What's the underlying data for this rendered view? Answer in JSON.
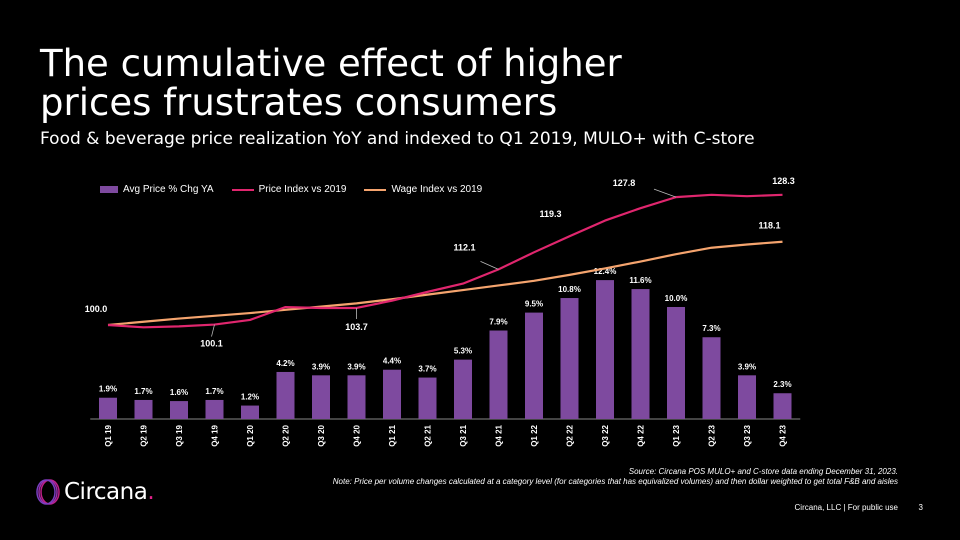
{
  "title": "The cumulative effect of higher prices frustrates consumers",
  "subtitle": "Food & beverage price realization YoY and indexed to Q1 2019, MULO+ with C-store",
  "legend": {
    "bar": "Avg Price % Chg YA",
    "price": "Price Index vs 2019",
    "wage": "Wage Index vs 2019"
  },
  "colors": {
    "bar": "#7e4a9f",
    "price": "#e0266e",
    "wage": "#f5a46e"
  },
  "chart_data": {
    "type": "bar",
    "categories": [
      "Q1 19",
      "Q2 19",
      "Q3 19",
      "Q4 19",
      "Q1 20",
      "Q2 20",
      "Q3 20",
      "Q4 20",
      "Q1 21",
      "Q2 21",
      "Q3 21",
      "Q4 21",
      "Q1 22",
      "Q2 22",
      "Q3 22",
      "Q4 22",
      "Q1 23",
      "Q2 23",
      "Q3 23",
      "Q4 23"
    ],
    "series": [
      {
        "name": "Avg Price % Chg YA",
        "kind": "bar",
        "values": [
          1.9,
          1.7,
          1.6,
          1.7,
          1.2,
          4.2,
          3.9,
          3.9,
          4.4,
          3.7,
          5.3,
          7.9,
          9.5,
          10.8,
          12.4,
          11.6,
          10.0,
          7.3,
          3.9,
          2.3
        ],
        "labels": [
          "1.9%",
          "1.7%",
          "1.6%",
          "1.7%",
          "1.2%",
          "4.2%",
          "3.9%",
          "3.9%",
          "4.4%",
          "3.7%",
          "5.3%",
          "7.9%",
          "9.5%",
          "10.8%",
          "12.4%",
          "11.6%",
          "10.0%",
          "7.3%",
          "3.9%",
          "2.3%"
        ]
      },
      {
        "name": "Price Index vs 2019",
        "kind": "line",
        "values": [
          100.0,
          99.5,
          99.7,
          100.1,
          101.1,
          103.9,
          103.7,
          103.7,
          105.3,
          107.2,
          109.0,
          112.1,
          115.8,
          119.3,
          122.7,
          125.4,
          127.8,
          128.3,
          128.0,
          128.3
        ]
      },
      {
        "name": "Wage Index vs 2019",
        "kind": "line",
        "values": [
          100.0,
          100.7,
          101.4,
          102.0,
          102.6,
          103.3,
          104.0,
          104.7,
          105.6,
          106.6,
          107.6,
          108.6,
          109.6,
          110.9,
          112.3,
          113.8,
          115.4,
          116.8,
          117.5,
          118.1
        ]
      }
    ],
    "annotations": [
      {
        "series": "Price Index vs 2019",
        "index": 0,
        "text": "100.0"
      },
      {
        "series": "Price Index vs 2019",
        "index": 3,
        "text": "100.1"
      },
      {
        "series": "Price Index vs 2019",
        "index": 7,
        "text": "103.7"
      },
      {
        "series": "Price Index vs 2019",
        "index": 11,
        "text": "112.1"
      },
      {
        "series": "Price Index vs 2019",
        "index": 13,
        "text": "119.3"
      },
      {
        "series": "Price Index vs 2019",
        "index": 16,
        "text": "127.8"
      },
      {
        "series": "Price Index vs 2019",
        "index": 19,
        "text": "128.3"
      },
      {
        "series": "Wage Index vs 2019",
        "index": 19,
        "text": "118.1"
      }
    ],
    "title": "",
    "xlabel": "",
    "ylabel": "",
    "legend_position": "top-left",
    "grid": false
  },
  "footer": {
    "source": "Source: Circana POS MULO+ and C-store data ending December 31, 2023.",
    "note": "Note: Price per volume changes calculated at a category level (for categories that has equivalized volumes) and then dollar weighted to get total F&B and aisles",
    "company": "Circana, LLC | For public use",
    "page": "3",
    "logo": "Circana",
    "logo_dot": "."
  }
}
